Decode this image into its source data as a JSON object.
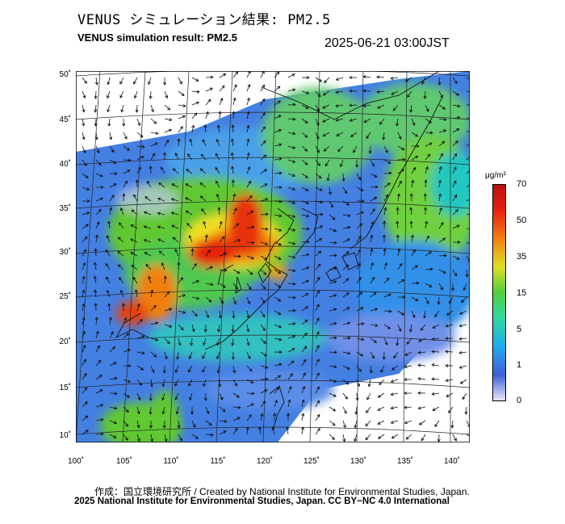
{
  "title_jp": "VENUS シミュレーション結果: PM2.5",
  "title_en": "VENUS simulation result: PM2.5",
  "timestamp": "2025-06-21 03:00JST",
  "lat_labels": [
    "50˚",
    "45˚",
    "40˚",
    "35˚",
    "30˚",
    "25˚",
    "20˚",
    "15˚",
    "10˚"
  ],
  "lon_labels": [
    "100˚",
    "105˚",
    "110˚",
    "115˚",
    "120˚",
    "125˚",
    "130˚",
    "135˚",
    "140˚"
  ],
  "colorbar": {
    "unit": "μg/m³",
    "ticks": [
      "70",
      "50",
      "35",
      "15",
      "5",
      "1",
      "0"
    ],
    "colors": [
      "#e8e8f8",
      "#4060d8",
      "#20a8f0",
      "#30d8a0",
      "#50d040",
      "#e0e020",
      "#f08010",
      "#e82010",
      "#b81010"
    ]
  },
  "credit": "作成：国立環境研究所 / Created by National Institute for Environmental Studies, Japan.",
  "license": "2025 National Institute for Environmental Studies, Japan. CC BY−NC 4.0 International",
  "legend_icons": [
    "wind-arrow-icon"
  ]
}
